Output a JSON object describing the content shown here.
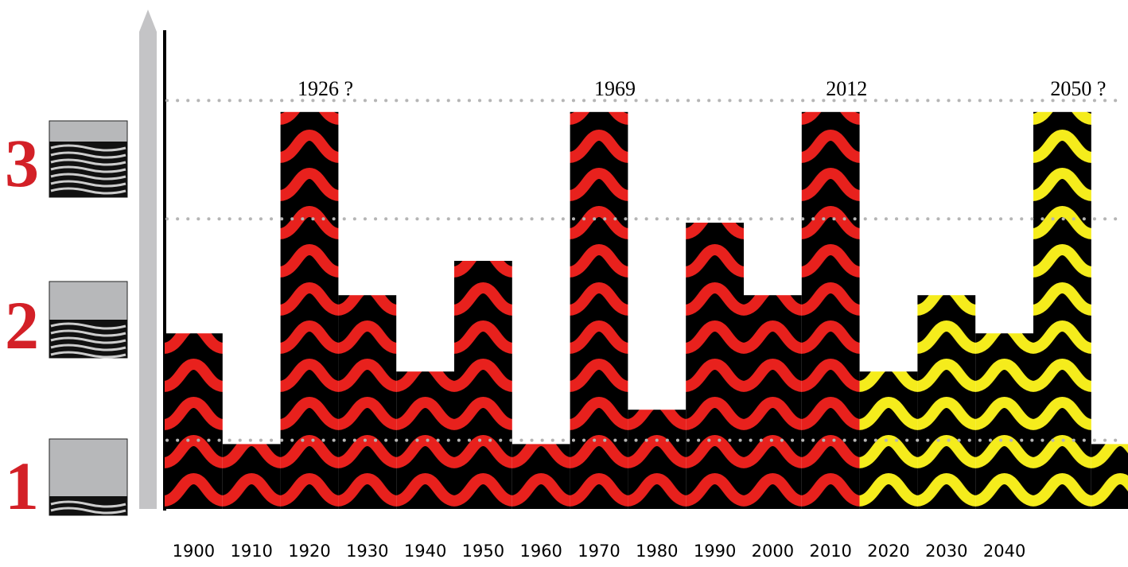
{
  "chart_data": {
    "type": "bar",
    "categories": [
      "1900",
      "1910",
      "1920",
      "1930",
      "1940",
      "1950",
      "1960",
      "1970",
      "1980",
      "1990",
      "2000",
      "2010",
      "2020",
      "2030",
      "2040",
      null,
      null
    ],
    "values": [
      4.6,
      1.7,
      10.4,
      5.6,
      3.6,
      6.5,
      1.7,
      10.4,
      2.6,
      7.5,
      5.6,
      10.4,
      3.6,
      5.6,
      4.6,
      10.4,
      1.7
    ],
    "colors": [
      "#e8211d",
      "#e8211d",
      "#e8211d",
      "#e8211d",
      "#e8211d",
      "#e8211d",
      "#e8211d",
      "#e8211d",
      "#e8211d",
      "#e8211d",
      "#e8211d",
      "#e8211d",
      "#f5ec1c",
      "#f5ec1c",
      "#f5ec1c",
      "#f5ec1c",
      "#f5ec1c"
    ],
    "annotations": [
      null,
      null,
      "1926 ?",
      null,
      null,
      null,
      null,
      "1969",
      null,
      null,
      null,
      "2012",
      null,
      null,
      null,
      "2050 ?",
      null
    ],
    "levels": [
      "1",
      "2",
      "3"
    ],
    "ylim": [
      0,
      11
    ],
    "gridlines": [
      1.8,
      7.6,
      10.7
    ],
    "grid": true
  }
}
